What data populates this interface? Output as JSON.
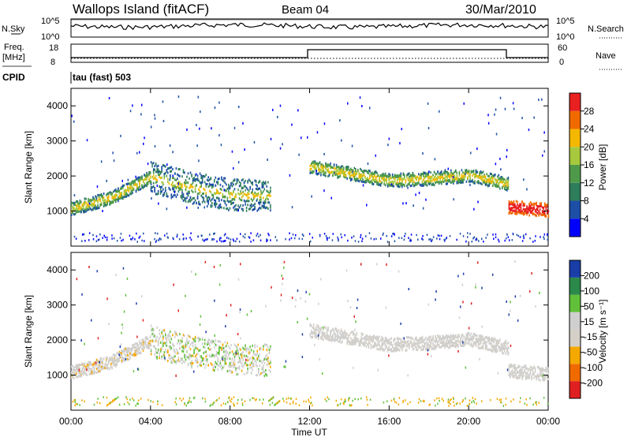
{
  "header": {
    "station": "Wallops Island (fitACF)",
    "beam": "Beam 04",
    "date": "30/Mar/2010"
  },
  "top_panels": {
    "nsky_label": "N.Sky",
    "nsky_ticks": [
      "10^5",
      "10^0"
    ],
    "nsearch_label": "N.Search",
    "nsearch_ticks": [
      "10^5",
      "10^0"
    ],
    "freq_label_line1": "Freq.",
    "freq_label_line2": "[MHz]",
    "freq_ticks": [
      "18",
      "8"
    ],
    "nave_label": "Nave",
    "nave_ticks": [
      "60",
      "0"
    ],
    "cpid_label": "CPID",
    "cpid_value": "tau (fast) 503"
  },
  "chart_data": [
    {
      "type": "heatmap",
      "name": "power",
      "ylabel": "Slant Range [km]",
      "yticks": [
        "4000",
        "3000",
        "2000",
        "1000"
      ],
      "ylim": [
        0,
        4500
      ],
      "colorbar_label": "Power [dB]",
      "colorbar_ticks": [
        "28",
        "24",
        "20",
        "16",
        "12",
        "8",
        "4"
      ],
      "colorbar_colors": [
        "#0000ff",
        "#1d4fa6",
        "#2e7d5b",
        "#4f9a4a",
        "#a6c93d",
        "#f5b800",
        "#f06a00",
        "#e82020"
      ],
      "bands": [
        {
          "x": [
            0.0,
            2.0,
            4.0
          ],
          "y": [
            1100,
            1400,
            2000
          ],
          "level": 14
        },
        {
          "x": [
            4.0,
            6.0,
            8.0,
            10.0
          ],
          "y": [
            2000,
            1700,
            1500,
            1450
          ],
          "level": 10
        },
        {
          "x": [
            12.0,
            14.0,
            16.0,
            18.0,
            20.0,
            22.0
          ],
          "y": [
            2300,
            2100,
            1900,
            1950,
            2050,
            1800
          ],
          "level": 14
        },
        {
          "x": [
            22.0,
            24.0
          ],
          "y": [
            1150,
            1050
          ],
          "level": 24
        }
      ]
    },
    {
      "type": "heatmap",
      "name": "velocity",
      "ylabel": "Slant Range [km]",
      "yticks": [
        "4000",
        "3000",
        "2000",
        "1000"
      ],
      "ylim": [
        0,
        4500
      ],
      "colorbar_label": "Velocity [m s⁻¹]",
      "colorbar_ticks": [
        "200",
        "100",
        "50",
        "15",
        "-15",
        "-50",
        "-100",
        "-200"
      ],
      "colorbar_colors": [
        "#1a3ea8",
        "#2b8a4a",
        "#61c03a",
        "#cfcfcf",
        "#d4d0c8",
        "#f5a800",
        "#f06a00",
        "#e02020"
      ],
      "xlabel": "Time UT",
      "xticks": [
        "00:00",
        "04:00",
        "08:00",
        "12:00",
        "16:00",
        "20:00",
        "00:00"
      ]
    }
  ]
}
